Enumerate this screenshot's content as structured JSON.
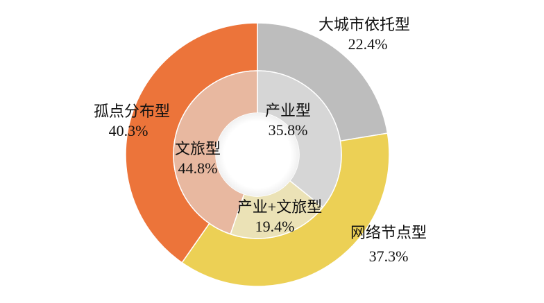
{
  "chart_data": {
    "type": "pie",
    "subtype": "nested-donut",
    "title": "",
    "outer_ring": {
      "categories": [
        "大城市依托型",
        "网络节点型",
        "孤点分布型"
      ],
      "values": [
        22.4,
        37.3,
        40.3
      ],
      "colors": [
        "#bdbdbd",
        "#ecd055",
        "#ec743a"
      ]
    },
    "inner_ring": {
      "categories": [
        "产业型",
        "产业+文旅型",
        "文旅型"
      ],
      "values": [
        35.8,
        19.4,
        44.8
      ],
      "colors": [
        "#d6d6d6",
        "#ebe2b6",
        "#e8b8a0"
      ]
    },
    "legend": "none",
    "start_angle_deg": 0,
    "direction": "clockwise"
  },
  "labels": {
    "outer": [
      {
        "name": "大城市依托型",
        "pct": "22.4%"
      },
      {
        "name": "网络节点型",
        "pct": "37.3%"
      },
      {
        "name": "孤点分布型",
        "pct": "40.3%"
      }
    ],
    "inner": [
      {
        "name": "产业型",
        "pct": "35.8%"
      },
      {
        "name": "产业+文旅型",
        "pct": "19.4%"
      },
      {
        "name": "文旅型",
        "pct": "44.8%"
      }
    ]
  }
}
